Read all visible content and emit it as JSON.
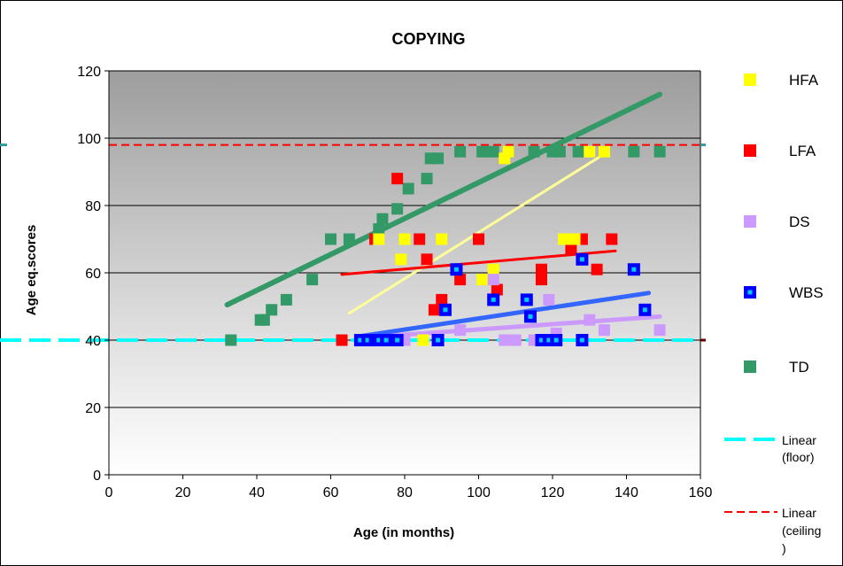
{
  "chart_data": {
    "type": "scatter",
    "title": "COPYING",
    "xlabel": "Age (in months)",
    "ylabel": "Age eq.scores",
    "xlim": [
      0,
      160
    ],
    "ylim": [
      0,
      120
    ],
    "xticks": [
      0,
      20,
      40,
      60,
      80,
      100,
      120,
      140,
      160
    ],
    "yticks": [
      0,
      20,
      40,
      60,
      80,
      100,
      120
    ],
    "grid": "horizontal",
    "legend_position": "right",
    "series": [
      {
        "name": "HFA",
        "color": "#ffff00",
        "points": [
          [
            73,
            70
          ],
          [
            79,
            64
          ],
          [
            80,
            70
          ],
          [
            85,
            40
          ],
          [
            90,
            70
          ],
          [
            101,
            58
          ],
          [
            104,
            61
          ],
          [
            107,
            94
          ],
          [
            108,
            96
          ],
          [
            116,
            40
          ],
          [
            123,
            70
          ],
          [
            126,
            70
          ],
          [
            130,
            96
          ],
          [
            134,
            96
          ]
        ],
        "trend": [
          [
            65,
            48
          ],
          [
            135,
            96
          ]
        ]
      },
      {
        "name": "LFA",
        "color": "#ff0000",
        "points": [
          [
            63,
            40
          ],
          [
            72,
            70
          ],
          [
            78,
            88
          ],
          [
            84,
            70
          ],
          [
            86,
            64
          ],
          [
            88,
            49
          ],
          [
            90,
            52
          ],
          [
            95,
            58
          ],
          [
            100,
            70
          ],
          [
            105,
            55
          ],
          [
            117,
            58
          ],
          [
            117,
            61
          ],
          [
            124,
            70
          ],
          [
            125,
            67
          ],
          [
            128,
            70
          ],
          [
            132,
            61
          ],
          [
            136,
            70
          ]
        ],
        "trend": [
          [
            63,
            59.5
          ],
          [
            137,
            66.5
          ]
        ]
      },
      {
        "name": "DS",
        "color": "#cc99ff",
        "points": [
          [
            78,
            40
          ],
          [
            80,
            40
          ],
          [
            95,
            43
          ],
          [
            104,
            58
          ],
          [
            107,
            40
          ],
          [
            110,
            40
          ],
          [
            115,
            40
          ],
          [
            119,
            52
          ],
          [
            121,
            42
          ],
          [
            130,
            46
          ],
          [
            134,
            43
          ],
          [
            149,
            43
          ]
        ],
        "trend": [
          [
            72,
            41
          ],
          [
            149,
            47
          ]
        ]
      },
      {
        "name": "WBS",
        "color": "#0000ff",
        "points": [
          [
            68,
            40
          ],
          [
            70,
            40
          ],
          [
            72,
            40
          ],
          [
            73,
            40
          ],
          [
            75,
            40
          ],
          [
            78,
            40
          ],
          [
            89,
            40
          ],
          [
            91,
            49
          ],
          [
            94,
            61
          ],
          [
            104,
            52
          ],
          [
            113,
            52
          ],
          [
            114,
            47
          ],
          [
            117,
            40
          ],
          [
            119,
            40
          ],
          [
            121,
            40
          ],
          [
            128,
            40
          ],
          [
            128,
            64
          ],
          [
            142,
            61
          ],
          [
            145,
            49
          ]
        ],
        "trend": [
          [
            67,
            41
          ],
          [
            146,
            54
          ]
        ]
      },
      {
        "name": "TD",
        "color": "#339966",
        "points": [
          [
            33,
            40
          ],
          [
            41,
            46
          ],
          [
            42,
            46
          ],
          [
            44,
            49
          ],
          [
            48,
            52
          ],
          [
            55,
            58
          ],
          [
            60,
            70
          ],
          [
            65,
            70
          ],
          [
            73,
            73
          ],
          [
            74,
            76
          ],
          [
            78,
            79
          ],
          [
            81,
            85
          ],
          [
            86,
            88
          ],
          [
            87,
            94
          ],
          [
            89,
            94
          ],
          [
            95,
            96
          ],
          [
            101,
            96
          ],
          [
            104,
            96
          ],
          [
            108,
            96
          ],
          [
            115,
            96
          ],
          [
            120,
            96
          ],
          [
            122,
            96
          ],
          [
            127,
            96
          ],
          [
            142,
            96
          ],
          [
            149,
            96
          ]
        ],
        "trend": [
          [
            32,
            50.5
          ],
          [
            149,
            113
          ]
        ]
      }
    ],
    "reference_lines": [
      {
        "name": "Linear (floor)",
        "value": 40,
        "color": "#00ffff"
      },
      {
        "name": "Linear (ceiling)",
        "value": 98,
        "color": "#ff0000"
      }
    ],
    "legend": [
      "HFA",
      "LFA",
      "DS",
      "WBS",
      "TD",
      "Linear (floor)",
      "Linear (ceiling)"
    ]
  }
}
